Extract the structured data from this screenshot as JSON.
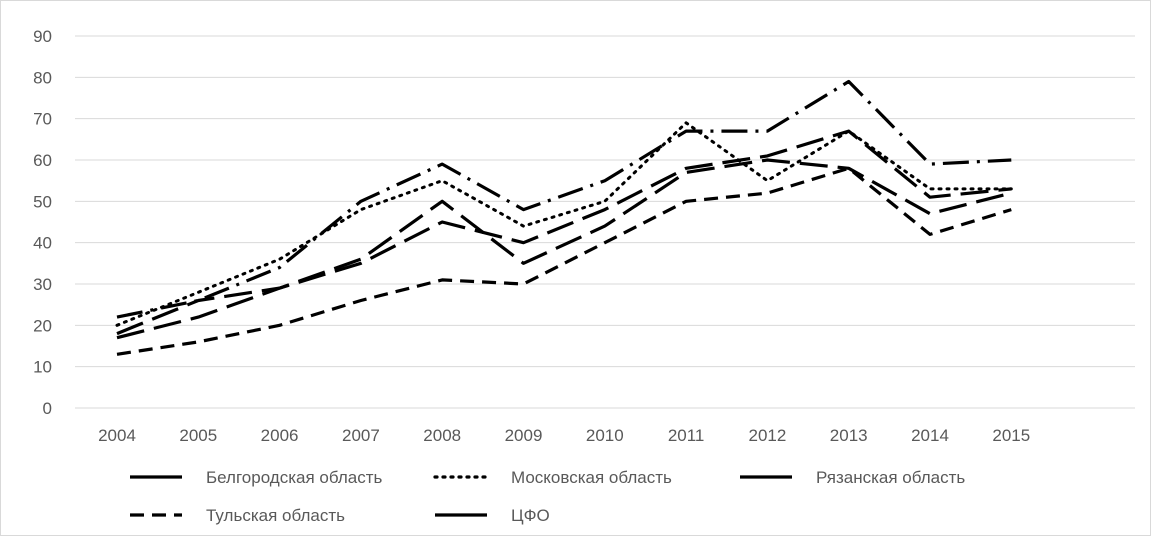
{
  "chart_data": {
    "type": "line",
    "title": "",
    "xlabel": "",
    "ylabel": "",
    "x": [
      "2004",
      "2005",
      "2006",
      "2007",
      "2008",
      "2009",
      "2010",
      "2011",
      "2012",
      "2013",
      "2014",
      "2015"
    ],
    "ylim": [
      0,
      90
    ],
    "yticks": [
      0,
      10,
      20,
      30,
      40,
      50,
      60,
      70,
      80,
      90
    ],
    "grid": true,
    "legend_position": "bottom",
    "series": [
      {
        "name": "Белгородская область",
        "style": "long-dash-dot",
        "values": [
          22,
          26,
          34,
          50,
          59,
          48,
          55,
          67,
          67,
          79,
          59,
          60
        ]
      },
      {
        "name": "Московская область",
        "style": "dotted",
        "values": [
          20,
          28,
          36,
          48,
          55,
          44,
          50,
          69,
          55,
          67,
          53,
          53
        ]
      },
      {
        "name": "Рязанская область",
        "style": "long-dash",
        "values": [
          18,
          26,
          29,
          36,
          50,
          35,
          44,
          57,
          60,
          58,
          47,
          52
        ]
      },
      {
        "name": "Тульская область",
        "style": "dashed",
        "values": [
          13,
          16,
          20,
          26,
          31,
          30,
          40,
          50,
          52,
          58,
          42,
          48
        ]
      },
      {
        "name": "ЦФО",
        "style": "long-dash",
        "values": [
          17,
          22,
          29,
          35,
          45,
          40,
          48,
          58,
          61,
          67,
          51,
          53
        ]
      }
    ]
  }
}
